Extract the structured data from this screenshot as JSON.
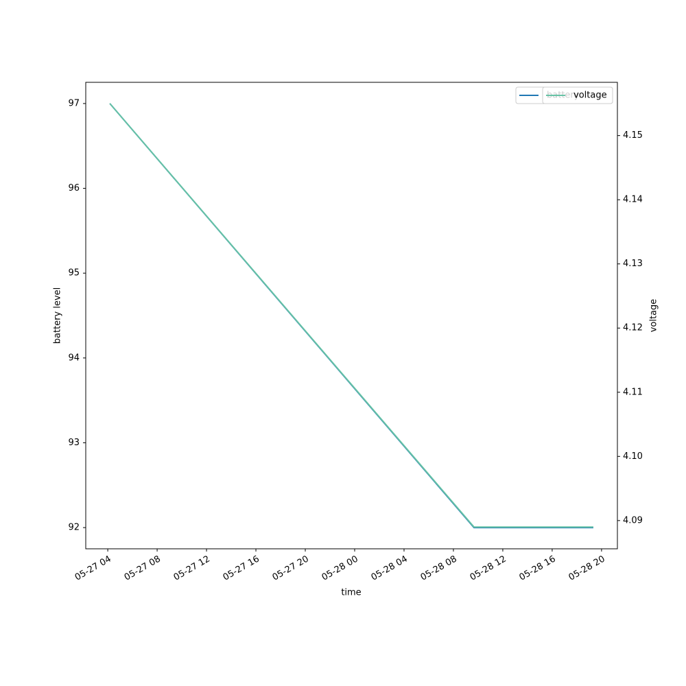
{
  "chart_data": {
    "type": "line",
    "x_label": "time",
    "y_label": "battery level",
    "y2_label": "voltage",
    "x": [
      "05-27 04:10",
      "05-28 09:40",
      "05-28 19:20"
    ],
    "series": [
      {
        "name": "battery",
        "color": "#1f77b4",
        "values": [
          97,
          92,
          92
        ]
      },
      {
        "name": "voltage",
        "color": "#66c2a5",
        "values": [
          4.155,
          4.089,
          4.089
        ],
        "axis": "y2"
      }
    ],
    "xlim": [
      "05-27 02:13",
      "05-28 21:17"
    ],
    "xticks": [
      "05-27 04",
      "05-27 08",
      "05-27 12",
      "05-27 16",
      "05-27 20",
      "05-28 00",
      "05-28 04",
      "05-28 08",
      "05-28 12",
      "05-28 16",
      "05-28 20"
    ],
    "ylim": [
      91.75,
      97.25
    ],
    "yticks": [
      92,
      93,
      94,
      95,
      96,
      97
    ],
    "y2lim": [
      4.0856,
      4.1583
    ],
    "y2ticks": [
      {
        "value": 4.09,
        "label": "4.09"
      },
      {
        "value": 4.1,
        "label": "4.10"
      },
      {
        "value": 4.11,
        "label": "4.11"
      },
      {
        "value": 4.12,
        "label": "4.12"
      },
      {
        "value": 4.13,
        "label": "4.13"
      },
      {
        "value": 4.14,
        "label": "4.14"
      },
      {
        "value": 4.15,
        "label": "4.15"
      }
    ],
    "legend": "upper right"
  }
}
